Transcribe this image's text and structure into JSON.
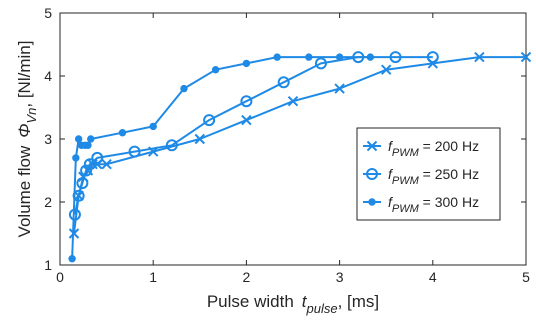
{
  "chart_data": {
    "type": "line",
    "xlabel": {
      "main": "Pulse width",
      "sym": "t",
      "sub": "pulse",
      "tail": ", [ms]"
    },
    "ylabel": {
      "main": "Volume flow",
      "sym": "Φ",
      "sub": "Vn",
      "tail": ", [Nl/min]"
    },
    "xlim": [
      0,
      5
    ],
    "ylim": [
      1,
      5
    ],
    "xticks": [
      0,
      1,
      2,
      3,
      4,
      5
    ],
    "yticks": [
      1,
      2,
      3,
      4,
      5
    ],
    "grid": false,
    "legend_position": "center-right",
    "color": "#1f8ae6",
    "series": [
      {
        "name": "f_PWM = 200 Hz",
        "legend": {
          "sym": "f",
          "sub": "PWM",
          "tail": " = 200 Hz"
        },
        "marker": "x",
        "x": [
          0.15,
          0.2,
          0.25,
          0.3,
          0.35,
          0.4,
          0.5,
          1.0,
          1.5,
          2.0,
          2.5,
          3.0,
          3.5,
          4.0,
          4.5,
          5.0
        ],
        "y": [
          1.5,
          2.1,
          2.4,
          2.5,
          2.6,
          2.6,
          2.6,
          2.8,
          3.0,
          3.3,
          3.6,
          3.8,
          4.1,
          4.2,
          4.3,
          4.3
        ]
      },
      {
        "name": "f_PWM = 250 Hz",
        "legend": {
          "sym": "f",
          "sub": "PWM",
          "tail": " = 250 Hz"
        },
        "marker": "o",
        "x": [
          0.16,
          0.2,
          0.24,
          0.28,
          0.32,
          0.4,
          0.8,
          1.2,
          1.6,
          2.0,
          2.4,
          2.8,
          3.2,
          3.6,
          4.0
        ],
        "y": [
          1.8,
          2.1,
          2.3,
          2.5,
          2.6,
          2.7,
          2.8,
          2.9,
          3.3,
          3.6,
          3.9,
          4.2,
          4.3,
          4.3,
          4.3
        ]
      },
      {
        "name": "f_PWM = 300 Hz",
        "legend": {
          "sym": "f",
          "sub": "PWM",
          "tail": " = 300 Hz"
        },
        "marker": "dot",
        "x": [
          0.13,
          0.17,
          0.2,
          0.23,
          0.27,
          0.3,
          0.33,
          0.67,
          1.0,
          1.33,
          1.67,
          2.0,
          2.33,
          2.67,
          3.0,
          3.33
        ],
        "y": [
          1.1,
          2.7,
          3.0,
          2.9,
          2.9,
          2.9,
          3.0,
          3.1,
          3.2,
          3.8,
          4.1,
          4.2,
          4.3,
          4.3,
          4.3,
          4.3
        ]
      }
    ]
  }
}
